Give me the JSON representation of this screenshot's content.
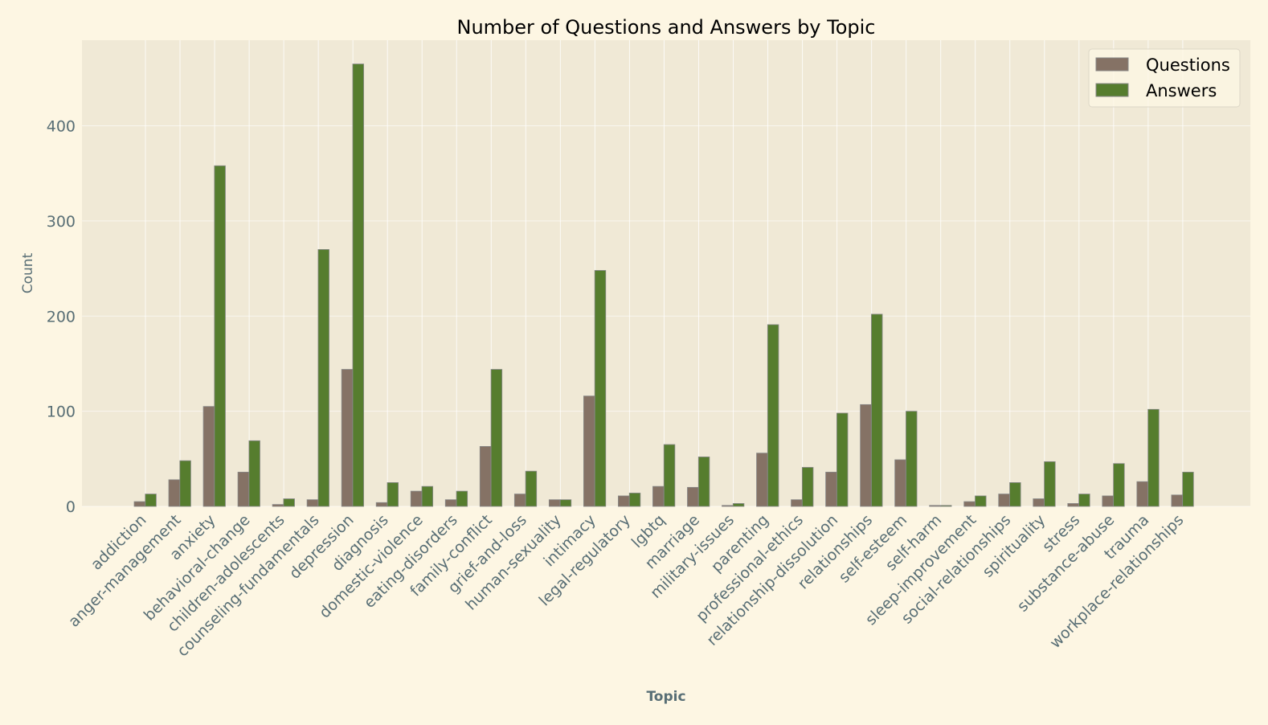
{
  "chart_data": {
    "type": "bar",
    "title": "Number of Questions and Answers by Topic",
    "xlabel": "Topic",
    "ylabel": "Count",
    "ylim": [
      0,
      490
    ],
    "yticks": [
      0,
      100,
      200,
      300,
      400
    ],
    "grid": true,
    "legend_position": "top-right",
    "categories": [
      "addiction",
      "anger-management",
      "anxiety",
      "behavioral-change",
      "children-adolescents",
      "counseling-fundamentals",
      "depression",
      "diagnosis",
      "domestic-violence",
      "eating-disorders",
      "family-conflict",
      "grief-and-loss",
      "human-sexuality",
      "intimacy",
      "legal-regulatory",
      "lgbtq",
      "marriage",
      "military-issues",
      "parenting",
      "professional-ethics",
      "relationship-dissolution",
      "relationships",
      "self-esteem",
      "self-harm",
      "sleep-improvement",
      "social-relationships",
      "spirituality",
      "stress",
      "substance-abuse",
      "trauma",
      "workplace-relationships"
    ],
    "series": [
      {
        "name": "Questions",
        "color": "#857265",
        "values": [
          5,
          28,
          105,
          36,
          2,
          7,
          144,
          4,
          16,
          7,
          63,
          13,
          7,
          116,
          11,
          21,
          20,
          1,
          56,
          7,
          36,
          107,
          49,
          1,
          5,
          13,
          8,
          3,
          11,
          26,
          12
        ]
      },
      {
        "name": "Answers",
        "color": "#567d2e",
        "values": [
          13,
          48,
          358,
          69,
          8,
          270,
          465,
          25,
          21,
          16,
          144,
          37,
          7,
          248,
          14,
          65,
          52,
          3,
          191,
          41,
          98,
          202,
          100,
          1,
          11,
          25,
          47,
          13,
          45,
          102,
          36
        ]
      }
    ]
  },
  "colors": {
    "page_background": "#fdf6e3",
    "plot_background": "#f0e9d6",
    "grid": "#ffffff",
    "text": "#586e75"
  }
}
